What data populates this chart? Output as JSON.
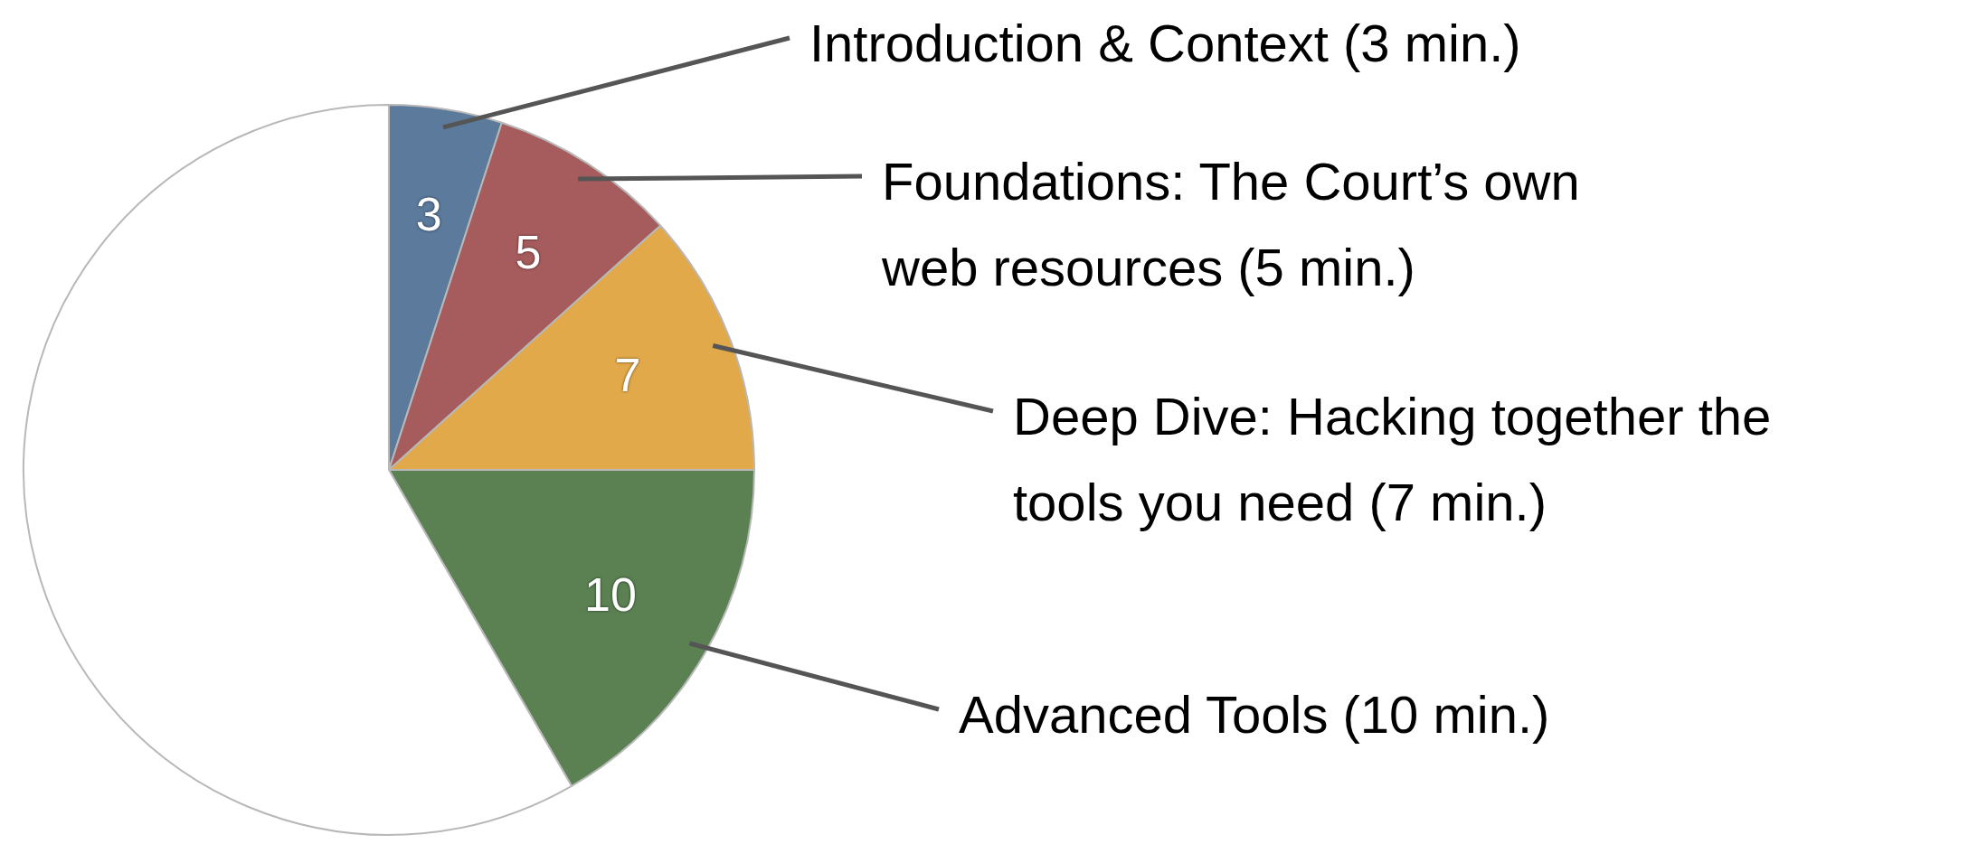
{
  "chart_data": {
    "type": "pie",
    "categories": [
      "Introduction & Context (3 min.)",
      "Foundations: The Court’s own web resources (5 min.)",
      "Deep Dive: Hacking together the tools you need (7 min.)",
      "Advanced Tools (10 min.)",
      null
    ],
    "values": [
      3,
      5,
      7,
      10,
      35
    ],
    "colors": [
      "#5b7a9c",
      "#a65c5c",
      "#e2a94a",
      "#5b8153",
      "#ffffff"
    ],
    "value_labels": [
      "3",
      "5",
      "7",
      "10",
      null
    ]
  }
}
